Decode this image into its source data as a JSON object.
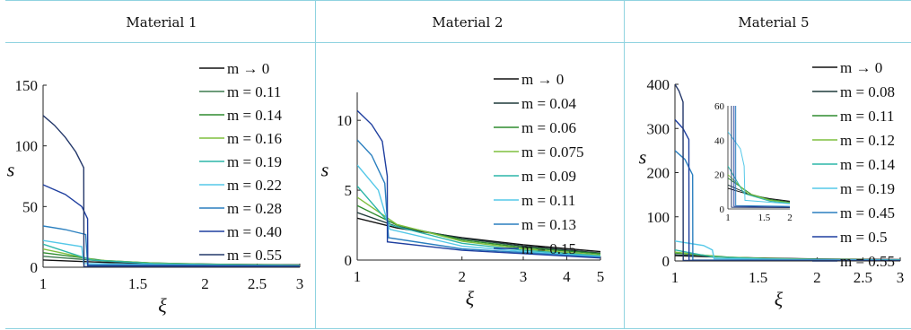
{
  "panels": [
    {
      "header": "Material 1"
    },
    {
      "header": "Material 2"
    },
    {
      "header": "Material 5"
    }
  ],
  "chart_data": [
    {
      "type": "line",
      "title": "Material 1",
      "xlabel": "ξ",
      "ylabel": "s",
      "xlim": [
        1,
        3
      ],
      "ylim": [
        0,
        150
      ],
      "xscale": "log",
      "x_ticks": [
        "1",
        "1.5",
        "2",
        "2.5",
        "3"
      ],
      "y_ticks": [
        "0",
        "50",
        "100",
        "150"
      ],
      "legend_position": "right",
      "series": [
        {
          "name": "m → 0",
          "color": "#111111",
          "points": [
            [
              1,
              6
            ],
            [
              1.3,
              4
            ],
            [
              1.6,
              3
            ],
            [
              2,
              2.5
            ],
            [
              3,
              2
            ]
          ]
        },
        {
          "name": "m = 0.11",
          "color": "#3c7a4e",
          "points": [
            [
              1,
              9
            ],
            [
              1.3,
              5
            ],
            [
              1.6,
              3.5
            ],
            [
              2,
              2.6
            ],
            [
              3,
              1.8
            ]
          ]
        },
        {
          "name": "m = 0.14",
          "color": "#2e8b2e",
          "points": [
            [
              1,
              12
            ],
            [
              1.3,
              5.5
            ],
            [
              1.6,
              3.5
            ],
            [
              2,
              2.5
            ],
            [
              3,
              1.6
            ]
          ]
        },
        {
          "name": "m = 0.16",
          "color": "#7fbf3f",
          "points": [
            [
              1,
              15
            ],
            [
              1.25,
              6
            ],
            [
              1.6,
              3.3
            ],
            [
              2,
              2.4
            ],
            [
              3,
              1.5
            ]
          ]
        },
        {
          "name": "m = 0.19",
          "color": "#2cb5a8",
          "points": [
            [
              1,
              19
            ],
            [
              1.23,
              6
            ],
            [
              1.6,
              3
            ],
            [
              2,
              2.2
            ],
            [
              3,
              1.4
            ]
          ]
        },
        {
          "name": "m = 0.22",
          "color": "#55c8e8",
          "points": [
            [
              1,
              22
            ],
            [
              1.18,
              17
            ],
            [
              1.19,
              3
            ],
            [
              1.6,
              2.2
            ],
            [
              2,
              1.8
            ],
            [
              3,
              1.2
            ]
          ]
        },
        {
          "name": "m = 0.28",
          "color": "#2a7fbf",
          "points": [
            [
              1,
              34
            ],
            [
              1.1,
              31
            ],
            [
              1.2,
              27
            ],
            [
              1.21,
              2
            ],
            [
              1.6,
              1.8
            ],
            [
              2,
              1.5
            ],
            [
              3,
              1
            ]
          ]
        },
        {
          "name": "m = 0.40",
          "color": "#1f3f9f",
          "points": [
            [
              1,
              68
            ],
            [
              1.1,
              60
            ],
            [
              1.18,
              50
            ],
            [
              1.21,
              40
            ],
            [
              1.211,
              1
            ],
            [
              2,
              1
            ],
            [
              3,
              0.8
            ]
          ]
        },
        {
          "name": "m = 0.55",
          "color": "#24386a",
          "points": [
            [
              1,
              125
            ],
            [
              1.05,
              117
            ],
            [
              1.1,
              107
            ],
            [
              1.15,
              95
            ],
            [
              1.19,
              82
            ],
            [
              1.191,
              0.5
            ],
            [
              2,
              0.4
            ],
            [
              3,
              0.3
            ]
          ]
        }
      ]
    },
    {
      "type": "line",
      "title": "Material 2",
      "xlabel": "ξ",
      "ylabel": "s",
      "xlim": [
        1,
        5
      ],
      "ylim": [
        0,
        12
      ],
      "xscale": "log",
      "x_ticks": [
        "1",
        "2",
        "3",
        "4",
        "5"
      ],
      "y_ticks": [
        "0",
        "5",
        "10"
      ],
      "legend_position": "right",
      "series": [
        {
          "name": "m → 0",
          "color": "#111111",
          "points": [
            [
              1,
              3.0
            ],
            [
              1.3,
              2.3
            ],
            [
              2,
              1.6
            ],
            [
              3,
              1.1
            ],
            [
              5,
              0.6
            ]
          ]
        },
        {
          "name": "m = 0.04",
          "color": "#1f3a3a",
          "points": [
            [
              1,
              3.4
            ],
            [
              1.3,
              2.4
            ],
            [
              2,
              1.55
            ],
            [
              3,
              1.0
            ],
            [
              5,
              0.5
            ]
          ]
        },
        {
          "name": "m = 0.06",
          "color": "#2e8b2e",
          "points": [
            [
              1,
              3.9
            ],
            [
              1.3,
              2.5
            ],
            [
              2,
              1.45
            ],
            [
              3,
              0.9
            ],
            [
              5,
              0.45
            ]
          ]
        },
        {
          "name": "m = 0.075",
          "color": "#7fbf3f",
          "points": [
            [
              1,
              4.5
            ],
            [
              1.3,
              2.55
            ],
            [
              2,
              1.35
            ],
            [
              3,
              0.8
            ],
            [
              5,
              0.35
            ]
          ]
        },
        {
          "name": "m = 0.09",
          "color": "#2cb5a8",
          "points": [
            [
              1,
              5.3
            ],
            [
              1.25,
              2.5
            ],
            [
              2,
              1.2
            ],
            [
              3,
              0.7
            ],
            [
              5,
              0.3
            ]
          ]
        },
        {
          "name": "m = 0.11",
          "color": "#55c8e8",
          "points": [
            [
              1,
              6.8
            ],
            [
              1.15,
              5
            ],
            [
              1.24,
              2.2
            ],
            [
              2,
              1.0
            ],
            [
              3,
              0.6
            ],
            [
              5,
              0.25
            ]
          ]
        },
        {
          "name": "m = 0.13",
          "color": "#2a7fbf",
          "points": [
            [
              1,
              8.6
            ],
            [
              1.1,
              7.5
            ],
            [
              1.2,
              5.5
            ],
            [
              1.23,
              1.6
            ],
            [
              2,
              0.8
            ],
            [
              5,
              0.2
            ]
          ]
        },
        {
          "name": "m = 0.15",
          "color": "#1f3f9f",
          "points": [
            [
              1,
              10.7
            ],
            [
              1.1,
              9.7
            ],
            [
              1.18,
              8.5
            ],
            [
              1.22,
              6
            ],
            [
              1.221,
              1.3
            ],
            [
              2,
              0.7
            ],
            [
              5,
              0.15
            ]
          ]
        }
      ]
    },
    {
      "type": "line",
      "title": "Material 5",
      "xlabel": "ξ",
      "ylabel": "s",
      "xlim": [
        1,
        3
      ],
      "ylim": [
        0,
        400
      ],
      "xscale": "log",
      "x_ticks": [
        "1",
        "1.5",
        "2",
        "2.5",
        "3"
      ],
      "y_ticks": [
        "0",
        "100",
        "200",
        "300",
        "400"
      ],
      "legend_position": "right",
      "inset": {
        "xlim": [
          1,
          2
        ],
        "ylim": [
          0,
          60
        ],
        "x_ticks": [
          "1",
          "1.5",
          "2"
        ],
        "y_ticks": [
          "0",
          "20",
          "40",
          "60"
        ]
      },
      "series": [
        {
          "name": "m → 0",
          "color": "#111111",
          "points": [
            [
              1,
              12
            ],
            [
              1.3,
              8
            ],
            [
              1.6,
              6
            ],
            [
              2,
              4.5
            ],
            [
              3,
              3
            ]
          ]
        },
        {
          "name": "m = 0.08",
          "color": "#1f3a3a",
          "points": [
            [
              1,
              14
            ],
            [
              1.3,
              8
            ],
            [
              1.6,
              5.5
            ],
            [
              2,
              4
            ],
            [
              3,
              2.5
            ]
          ]
        },
        {
          "name": "m = 0.11",
          "color": "#2e8b2e",
          "points": [
            [
              1,
              18
            ],
            [
              1.3,
              8.5
            ],
            [
              1.6,
              5.5
            ],
            [
              2,
              3.8
            ],
            [
              3,
              2.3
            ]
          ]
        },
        {
          "name": "m = 0.12",
          "color": "#7fbf3f",
          "points": [
            [
              1,
              20
            ],
            [
              1.25,
              9
            ],
            [
              1.6,
              5
            ],
            [
              2,
              3.6
            ],
            [
              3,
              2.2
            ]
          ]
        },
        {
          "name": "m = 0.14",
          "color": "#2cb5a8",
          "points": [
            [
              1,
              25
            ],
            [
              1.2,
              9
            ],
            [
              1.6,
              4.5
            ],
            [
              2,
              3.3
            ],
            [
              3,
              2
            ]
          ]
        },
        {
          "name": "m = 0.19",
          "color": "#55c8e8",
          "points": [
            [
              1,
              45
            ],
            [
              1.15,
              35
            ],
            [
              1.2,
              25
            ],
            [
              1.21,
              5
            ],
            [
              2,
              3
            ],
            [
              3,
              1.8
            ]
          ]
        },
        {
          "name": "m = 0.45",
          "color": "#2a7fbf",
          "points": [
            [
              1,
              250
            ],
            [
              1.05,
              230
            ],
            [
              1.09,
              195
            ],
            [
              1.091,
              2
            ],
            [
              2,
              1.5
            ],
            [
              3,
              1
            ]
          ]
        },
        {
          "name": "m = 0.5",
          "color": "#1f3f9f",
          "points": [
            [
              1,
              320
            ],
            [
              1.04,
              300
            ],
            [
              1.07,
              275
            ],
            [
              1.071,
              1.5
            ],
            [
              2,
              1
            ],
            [
              3,
              0.8
            ]
          ]
        },
        {
          "name": "m = 0.55",
          "color": "#24386a",
          "points": [
            [
              1,
              400
            ],
            [
              1.02,
              385
            ],
            [
              1.04,
              360
            ],
            [
              1.041,
              1
            ],
            [
              2,
              0.8
            ],
            [
              3,
              0.6
            ]
          ]
        }
      ]
    }
  ]
}
